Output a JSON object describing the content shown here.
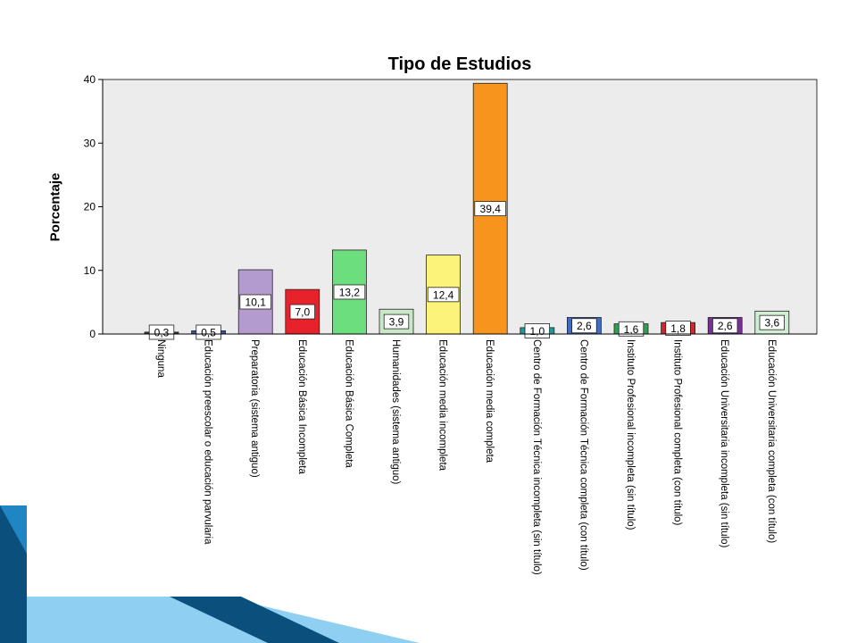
{
  "slide": {
    "colors": {
      "accent_dark": "#0b4f7c",
      "accent_mid": "#1f86c3",
      "accent_light": "#8fd0f2"
    }
  },
  "chart_data": {
    "type": "bar",
    "title": "Tipo de Estudios",
    "xlabel": "",
    "ylabel": "Porcentaje",
    "ylim": [
      0,
      40
    ],
    "yticks": [
      0,
      10,
      20,
      30,
      40
    ],
    "grid": false,
    "plot_background": "#ececec",
    "categories": [
      "Ninguna",
      "Educación preescolar o educación parvularia",
      "Preparatoria (sistema antiguo)",
      "Educación Básica Incompleta",
      "Educación Básica Completa",
      "Humanidades (sistema antiguo)",
      "Educación media incompleta",
      "Educación media completa",
      "Centro de Formación Técnica incompleta (sin título)",
      "Centro de Formación Técnica completa (con título)",
      "Instituto Profesional incompleta (sin título)",
      "Instituto Profesional completa (con título)",
      "Educación Universitaria incompleta (sin título)",
      "Educación Universitaria completa (con título)"
    ],
    "values": [
      0.3,
      0.5,
      10.1,
      7.0,
      13.2,
      3.9,
      12.4,
      39.4,
      1.0,
      2.6,
      1.6,
      1.8,
      2.6,
      3.6
    ],
    "value_labels": [
      "0,3",
      "0,5",
      "10,1",
      "7,0",
      "13,2",
      "3,9",
      "12,4",
      "39,4",
      "1,0",
      "2,6",
      "1,6",
      "1,8",
      "2,6",
      "3,6"
    ],
    "colors": [
      "#3a3a3a",
      "#3c4e9c",
      "#b49bcf",
      "#e8222a",
      "#6dde7e",
      "#c8e8c8",
      "#fbf37a",
      "#f7941d",
      "#1f9a9a",
      "#3f6cc8",
      "#2fa050",
      "#d0262e",
      "#7a2f9a",
      "#cfeed4"
    ]
  }
}
